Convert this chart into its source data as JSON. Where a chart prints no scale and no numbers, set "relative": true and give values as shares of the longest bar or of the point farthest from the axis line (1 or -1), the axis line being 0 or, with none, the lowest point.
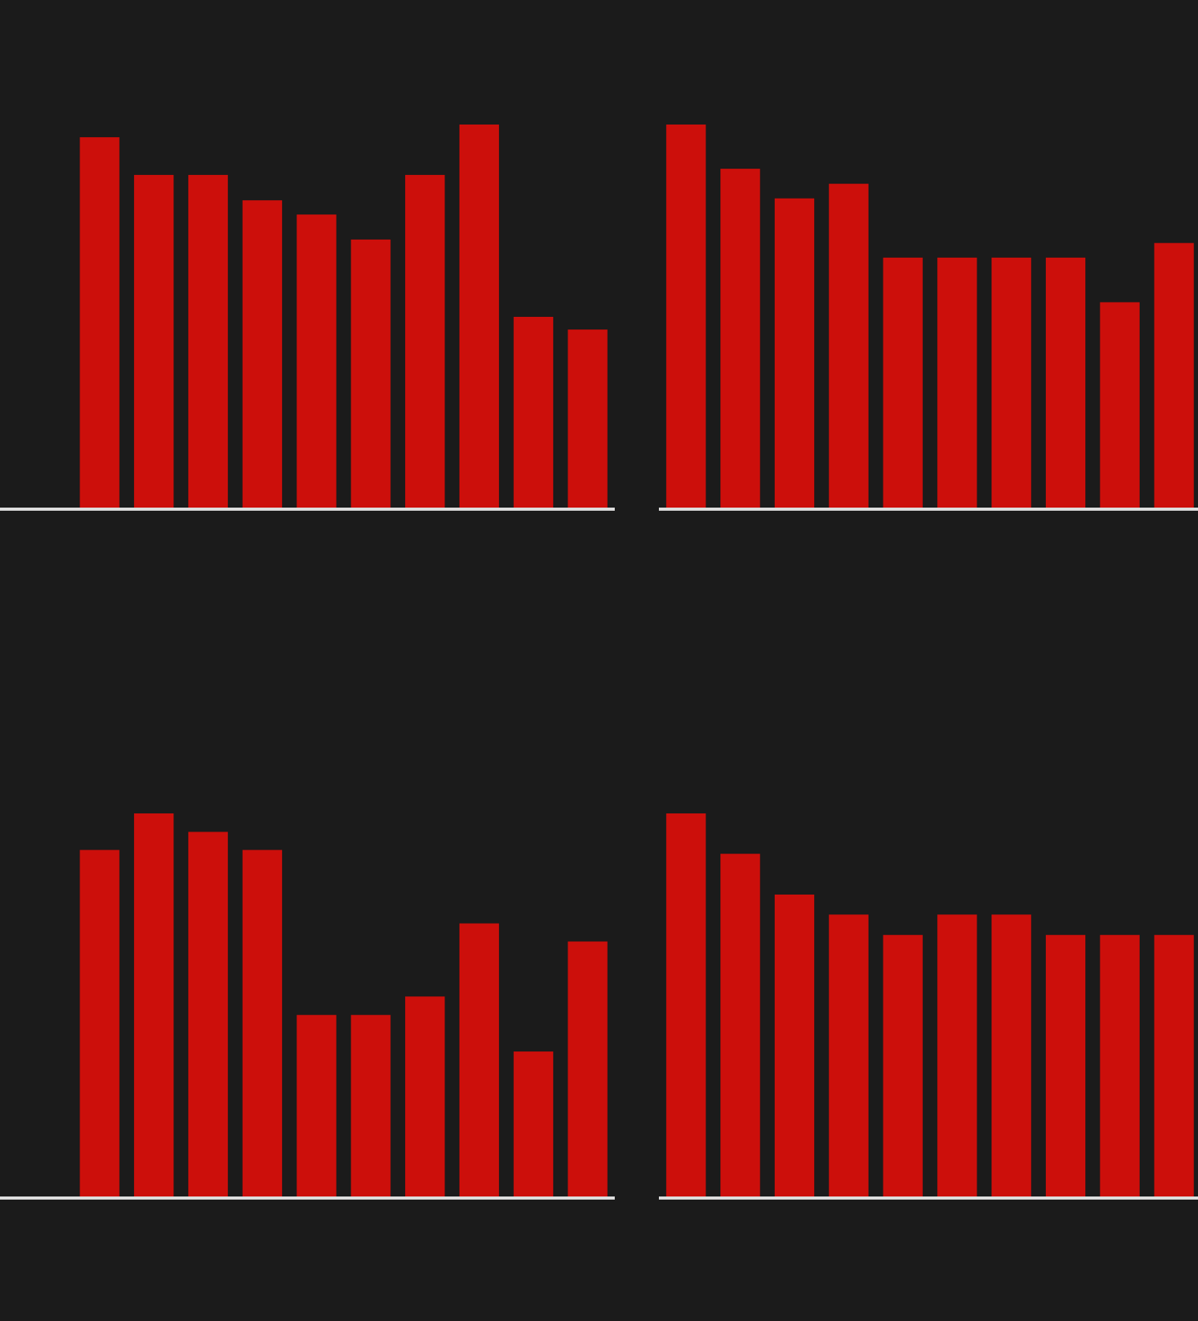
{
  "chart_data": [
    {
      "type": "bar",
      "relative": true,
      "categories": [
        null,
        null,
        null,
        null,
        null,
        null,
        null,
        null,
        null,
        null
      ],
      "values": [
        0.967,
        0.869,
        0.869,
        0.803,
        0.766,
        0.701,
        0.869,
        1,
        0.5,
        0.467
      ],
      "color": "#cc0f0b"
    },
    {
      "type": "bar",
      "relative": true,
      "categories": [
        null,
        null,
        null,
        null,
        null,
        null,
        null,
        null,
        null,
        null
      ],
      "values": [
        1,
        0.885,
        0.808,
        0.846,
        0.654,
        0.654,
        0.654,
        0.654,
        0.538,
        0.692
      ],
      "color": "#cc0f0b"
    },
    {
      "type": "bar",
      "relative": true,
      "categories": [
        null,
        null,
        null,
        null,
        null,
        null,
        null,
        null,
        null,
        null
      ],
      "values": [
        0.905,
        1,
        0.952,
        0.905,
        0.476,
        0.476,
        0.524,
        0.714,
        0.381,
        0.667
      ],
      "color": "#cc0f0b"
    },
    {
      "type": "bar",
      "relative": true,
      "categories": [
        null,
        null,
        null,
        null,
        null,
        null,
        null,
        null,
        null,
        null
      ],
      "values": [
        1,
        0.895,
        0.789,
        0.737,
        0.684,
        0.737,
        0.737,
        0.684,
        0.684,
        0.684
      ],
      "color": "#cc0f0b"
    }
  ]
}
